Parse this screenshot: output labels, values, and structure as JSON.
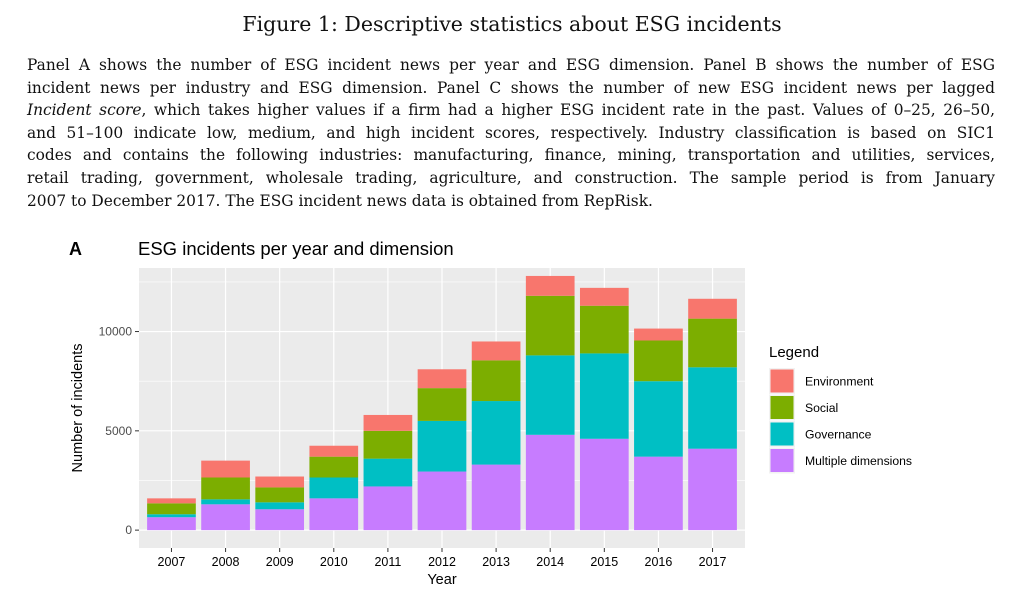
{
  "figure": {
    "title": "Figure 1: Descriptive statistics about ESG incidents",
    "caption_lines": [
      [
        {
          "t": "Panel A shows the number of ESG incident news per year and ESG dimension. Panel B shows the number of ESG"
        }
      ],
      [
        {
          "t": "incident news per industry and ESG dimension. Panel C shows the number of new ESG incident news per lagged"
        }
      ],
      [
        {
          "t": "Incident score",
          "i": true
        },
        {
          "t": ", which takes higher values if a firm had a higher ESG incident rate in the past. Values of 0–25, 26–50,"
        }
      ],
      [
        {
          "t": "and 51–100 indicate low, medium, and high incident scores, respectively. Industry classification is based on SIC1"
        }
      ],
      [
        {
          "t": "codes and contains the following industries: manufacturing, finance, mining, transportation and utilities, services,"
        }
      ],
      [
        {
          "t": "retail trading, government, wholesale trading, agriculture, and construction. The sample period is from January"
        }
      ],
      [
        {
          "t": "2007 to December 2017. The ESG incident news data is obtained from RepRisk."
        }
      ]
    ]
  },
  "chart_data": {
    "type": "bar",
    "stacked": true,
    "panel_label": "A",
    "title": "ESG incidents per year and dimension",
    "xlabel": "Year",
    "ylabel": "Number of incidents",
    "categories": [
      "2007",
      "2008",
      "2009",
      "2010",
      "2011",
      "2012",
      "2013",
      "2014",
      "2015",
      "2016",
      "2017"
    ],
    "ylim": [
      -900,
      13200
    ],
    "yticks": [
      0,
      5000,
      10000
    ],
    "ytick_labels": [
      "0",
      "5000",
      "10000"
    ],
    "grid": true,
    "legend": {
      "title": "Legend",
      "position": "right"
    },
    "series": [
      {
        "name": "Multiple dimensions",
        "color": "#C77CFF",
        "values": [
          650,
          1300,
          1050,
          1600,
          2200,
          2950,
          3300,
          4800,
          4600,
          3700,
          4100
        ]
      },
      {
        "name": "Governance",
        "color": "#00BFC4",
        "values": [
          150,
          250,
          350,
          1050,
          1400,
          2550,
          3200,
          4000,
          4300,
          3800,
          4100
        ]
      },
      {
        "name": "Social",
        "color": "#7CAE00",
        "values": [
          550,
          1100,
          750,
          1050,
          1400,
          1650,
          2050,
          3000,
          2400,
          2050,
          2450
        ]
      },
      {
        "name": "Environment",
        "color": "#F8766D",
        "values": [
          250,
          850,
          550,
          550,
          800,
          950,
          950,
          1000,
          900,
          600,
          1000
        ]
      }
    ],
    "legend_order": [
      "Environment",
      "Social",
      "Governance",
      "Multiple dimensions"
    ],
    "panel_background": "#EBEBEB",
    "grid_color": "#FFFFFF"
  }
}
